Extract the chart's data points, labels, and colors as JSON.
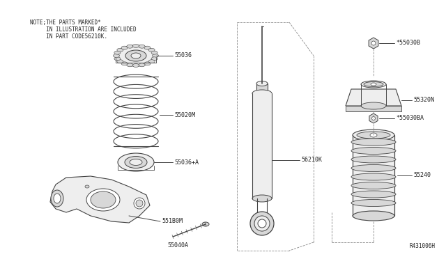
{
  "bg_color": "#ffffff",
  "fig_width": 6.4,
  "fig_height": 3.72,
  "note_line1": "NOTE;THE PARTS MARKED*",
  "note_line2": "     IN ILLUSTRATION ARE INCLUDED",
  "note_line3": "     IN PART CODE56210K.",
  "ref_code": "R431006H",
  "line_color": "#444444",
  "text_color": "#222222",
  "dashed_color": "#888888",
  "face_light": "#eeeeee",
  "face_mid": "#d8d8d8",
  "face_dark": "#c0c0c0"
}
